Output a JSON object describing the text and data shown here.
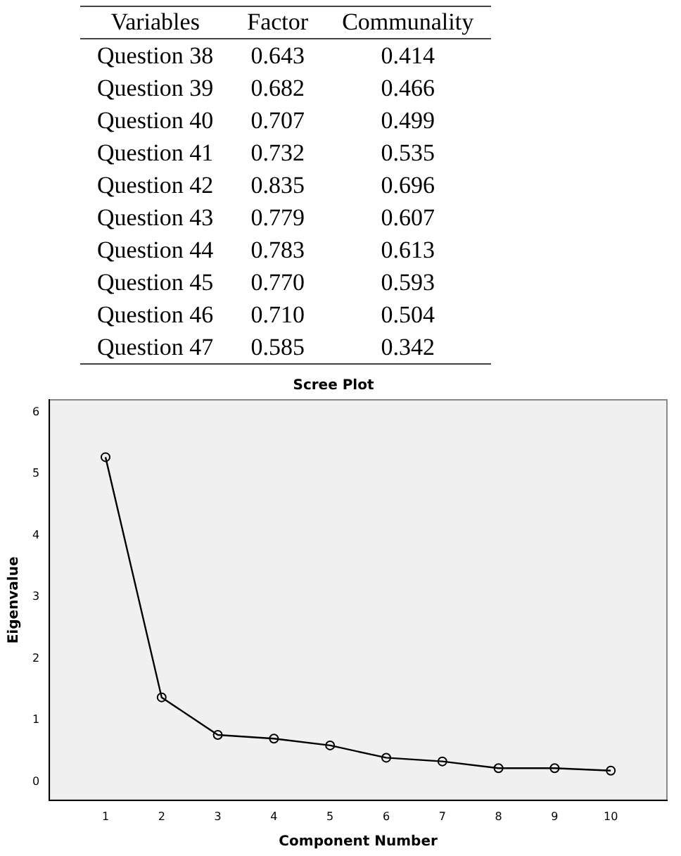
{
  "chart_data": [
    {
      "type": "other",
      "xlabel": "Variables",
      "categories": [
        "Question 38",
        "Question 39",
        "Question 40",
        "Question 41",
        "Question 42",
        "Question 43",
        "Question 44",
        "Question 45",
        "Question 46",
        "Question 47"
      ],
      "series": [
        {
          "name": "Factor",
          "values": [
            0.643,
            0.682,
            0.707,
            0.732,
            0.835,
            0.779,
            0.783,
            0.77,
            0.71,
            0.585
          ],
          "value_labels": [
            "0.643",
            "0.682",
            "0.707",
            "0.732",
            "0.835",
            "0.779",
            "0.783",
            "0.770",
            "0.710",
            "0.585"
          ]
        },
        {
          "name": "Communality",
          "values": [
            0.414,
            0.466,
            0.499,
            0.535,
            0.696,
            0.607,
            0.613,
            0.593,
            0.504,
            0.342
          ],
          "value_labels": [
            "0.414",
            "0.466",
            "0.499",
            "0.535",
            "0.696",
            "0.607",
            "0.613",
            "0.593",
            "0.504",
            "0.342"
          ]
        }
      ]
    },
    {
      "type": "line",
      "title": "Scree Plot",
      "xlabel": "Component Number",
      "ylabel": "Eigenvalue",
      "x": [
        1,
        2,
        3,
        4,
        5,
        6,
        7,
        8,
        9,
        10
      ],
      "series": [
        {
          "color": "#000000",
          "values": [
            5.27,
            1.37,
            0.76,
            0.7,
            0.59,
            0.39,
            0.33,
            0.22,
            0.22,
            0.18
          ]
        }
      ],
      "xlim": [
        0,
        11
      ],
      "xticks": [
        1,
        2,
        3,
        4,
        5,
        6,
        7,
        8,
        9,
        10
      ],
      "ylim": [
        -0.3,
        6.2
      ],
      "yticks": [
        0,
        1,
        2,
        3,
        4,
        5,
        6
      ],
      "grid": false,
      "legend": false,
      "marker": "circle",
      "line_style": "solid"
    }
  ]
}
